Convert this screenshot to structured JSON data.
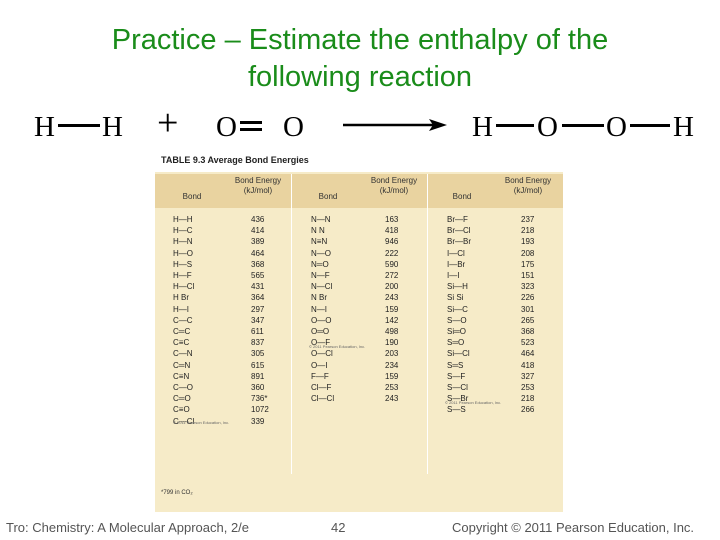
{
  "slide": {
    "title_line1": "Practice – Estimate the enthalpy of the",
    "title_line2": "following reaction"
  },
  "reaction": {
    "h1": "H",
    "h2": "H",
    "plus": "+",
    "o1": "O",
    "o2": "O",
    "p_h1": "H",
    "p_o1": "O",
    "p_o2": "O",
    "p_h2": "H"
  },
  "table": {
    "name": "TABLE 9.3  Average Bond Energies",
    "col_bond": "Bond",
    "col_energy": "Bond Energy (kJ/mol)",
    "col1": [
      [
        "H—H",
        "436"
      ],
      [
        "H—C",
        "414"
      ],
      [
        "H—N",
        "389"
      ],
      [
        "H—O",
        "464"
      ],
      [
        "H—S",
        "368"
      ],
      [
        "H—F",
        "565"
      ],
      [
        "H—Cl",
        "431"
      ],
      [
        "H  Br",
        "364"
      ],
      [
        "H—I",
        "297"
      ],
      [
        "C—C",
        "347"
      ],
      [
        "C═C",
        "611"
      ],
      [
        "C≡C",
        "837"
      ],
      [
        "C—N",
        "305"
      ],
      [
        "C═N",
        "615"
      ],
      [
        "C≡N",
        "891"
      ],
      [
        "C—O",
        "360"
      ],
      [
        "C═O",
        "736*"
      ],
      [
        "C≡O",
        "1072"
      ],
      [
        "C—Cl",
        "339"
      ]
    ],
    "col2": [
      [
        "N—N",
        "163"
      ],
      [
        "N   N",
        "418"
      ],
      [
        "N≡N",
        "946"
      ],
      [
        "N—O",
        "222"
      ],
      [
        "N═O",
        "590"
      ],
      [
        "N—F",
        "272"
      ],
      [
        "N—Cl",
        "200"
      ],
      [
        "N   Br",
        "243"
      ],
      [
        "N—I",
        "159"
      ],
      [
        "O—O",
        "142"
      ],
      [
        "O═O",
        "498"
      ],
      [
        "O—F",
        "190"
      ],
      [
        "O—Cl",
        "203"
      ],
      [
        "O—I",
        "234"
      ],
      [
        "F—F",
        "159"
      ],
      [
        "Cl—F",
        "253"
      ],
      [
        "Cl—Cl",
        "243"
      ]
    ],
    "col3": [
      [
        "Br—F",
        "237"
      ],
      [
        "Br—Cl",
        "218"
      ],
      [
        "Br—Br",
        "193"
      ],
      [
        "I—Cl",
        "208"
      ],
      [
        "I—Br",
        "175"
      ],
      [
        "I—I",
        "151"
      ],
      [
        "Si—H",
        "323"
      ],
      [
        "Si   Si",
        "226"
      ],
      [
        "Si—C",
        "301"
      ],
      [
        "S—O",
        "265"
      ],
      [
        "Si═O",
        "368"
      ],
      [
        "S═O",
        "523"
      ],
      [
        "Si—Cl",
        "464"
      ],
      [
        "S═S",
        "418"
      ],
      [
        "S—F",
        "327"
      ],
      [
        "S—Cl",
        "253"
      ],
      [
        "S—Br",
        "218"
      ],
      [
        "S—S",
        "266"
      ]
    ],
    "footnote": "*799 in CO₂",
    "credit": "© 2011 Pearson Education, Inc."
  },
  "footer": {
    "left": "Tro: Chemistry: A Molecular Approach, 2/e",
    "page": "42",
    "right": "Copyright © 2011 Pearson Education, Inc."
  }
}
